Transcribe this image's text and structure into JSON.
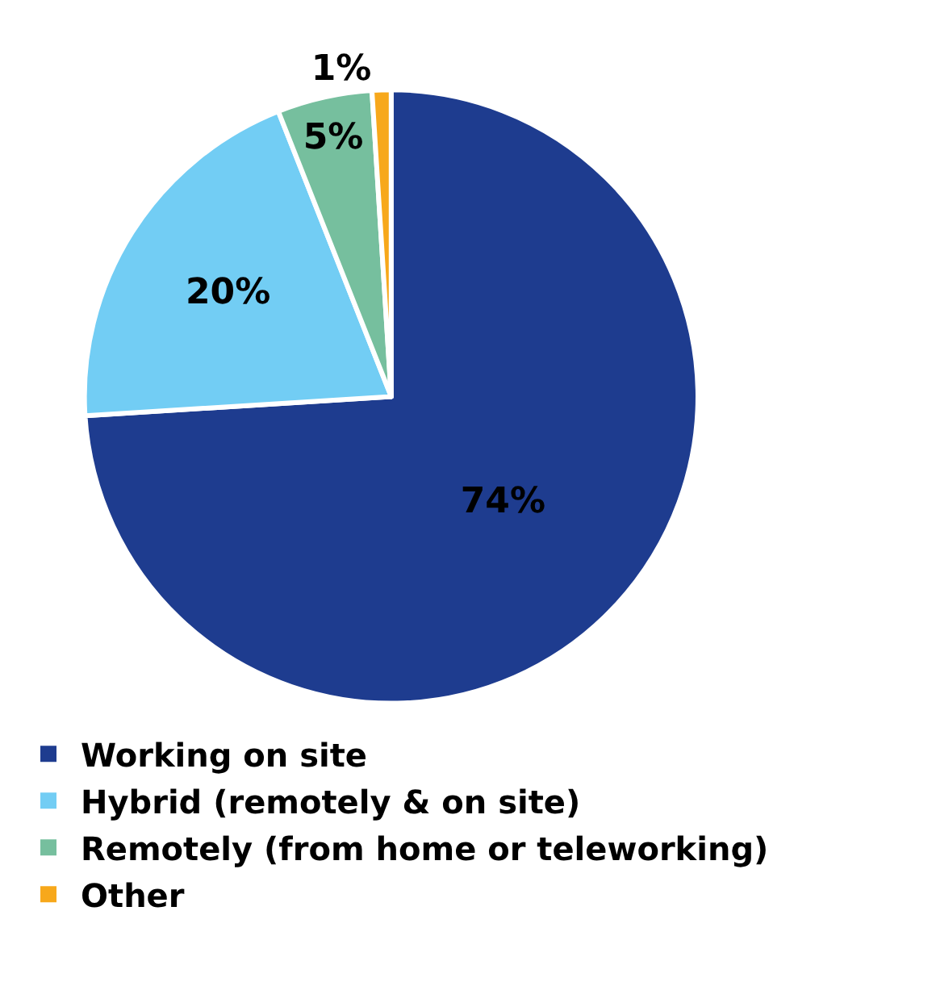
{
  "chart_data": {
    "type": "pie",
    "categories": [
      "Working on site",
      "Hybrid (remotely & on site)",
      "Remotely (from home or teleworking)",
      "Other"
    ],
    "values": [
      74,
      20,
      5,
      1
    ],
    "value_labels": [
      "74%",
      "20%",
      "5%",
      "1%"
    ],
    "colors": [
      "#1e3c8f",
      "#72cdf4",
      "#76bf9e",
      "#f7a81b"
    ],
    "legend": "bottom"
  }
}
